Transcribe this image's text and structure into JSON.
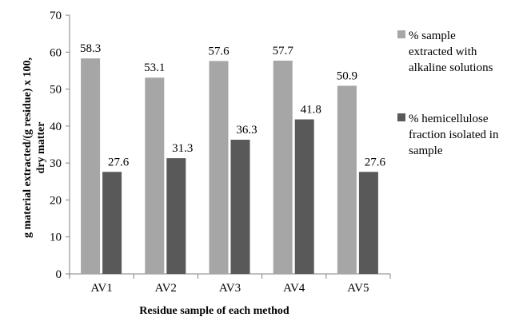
{
  "chart_data": {
    "type": "bar",
    "categories": [
      "AV1",
      "AV2",
      "AV3",
      "AV4",
      "AV5"
    ],
    "series": [
      {
        "name": "% sample extracted with alkaline solutions",
        "name_lines": [
          "% sample",
          "extracted with",
          "alkaline solutions"
        ],
        "color": "#a6a6a6",
        "values": [
          58.3,
          53.1,
          57.6,
          57.7,
          50.9
        ],
        "labels": [
          "58.3",
          "53.1",
          "57.6",
          "57.7",
          "50.9"
        ]
      },
      {
        "name": "% hemicellulose fraction isolated in sample",
        "name_lines": [
          "% hemicellulose",
          "fraction isolated in",
          "sample"
        ],
        "color": "#595959",
        "values": [
          27.6,
          31.3,
          36.3,
          41.8,
          27.6
        ],
        "labels": [
          "27.6",
          "31.3",
          "36.3",
          "41.8",
          "27.6"
        ]
      }
    ],
    "yticks": [
      "0",
      "10",
      "20",
      "30",
      "40",
      "50",
      "60",
      "70"
    ],
    "ylim": [
      0,
      70
    ],
    "xlabel": "Residue sample of each method",
    "ylabel_lines": [
      "g material extracted/(g residue) x 100,",
      "dry matter"
    ],
    "legend_position": "right",
    "grid": false
  }
}
